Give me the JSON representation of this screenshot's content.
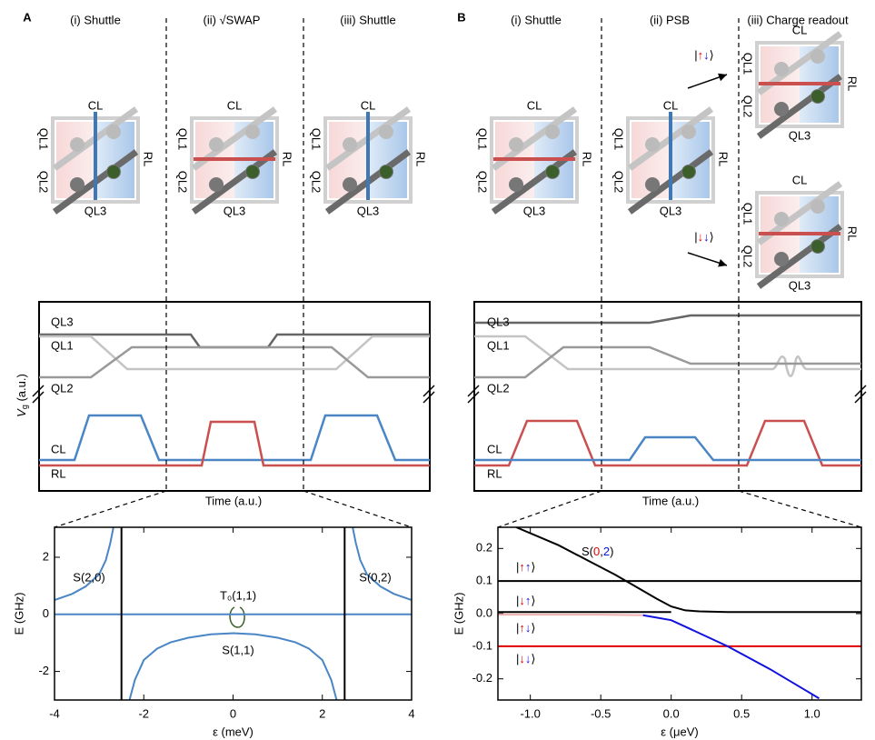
{
  "figure": {
    "panels": [
      "A",
      "B"
    ],
    "columns_a": [
      "(i) Shuttle",
      "(ii) √SWAP",
      "(iii) Shuttle"
    ],
    "columns_b": [
      "(i) Shuttle",
      "(ii) PSB",
      "(iii) Charge readout"
    ],
    "gates": {
      "cl": "CL",
      "rl": "RL",
      "ql1": "QL1",
      "ql2": "QL2",
      "ql3": "QL3"
    },
    "readout_kets": [
      [
        "|",
        "↑",
        "↓",
        "⟩"
      ],
      [
        "|",
        "↓",
        "↓",
        "⟩"
      ]
    ],
    "pulse_ylabel": [
      "V",
      "g",
      " (a.u.)"
    ],
    "pulse_xlabel": "Time (a.u.)"
  },
  "chart_data": [
    {
      "type": "line",
      "xlabel": "ε (meV)",
      "ylabel": "E (GHz)",
      "xlim": [
        -4,
        4
      ],
      "ylim": [
        -3,
        3.05
      ],
      "xticks": [
        -4,
        -2,
        0,
        2,
        4
      ],
      "yticks": [
        -2,
        0,
        2
      ],
      "series": [
        {
          "color": "#4a86c5",
          "x": [
            -4,
            -3.6,
            -3.3,
            -3.0,
            -2.85,
            -2.75,
            -2.68
          ],
          "values": [
            0.5,
            0.72,
            0.98,
            1.4,
            1.9,
            2.5,
            3.05
          ]
        },
        {
          "color": "#4a86c5",
          "x": [
            2.68,
            2.75,
            2.85,
            3.0,
            3.3,
            3.6,
            4
          ],
          "values": [
            3.05,
            2.5,
            1.9,
            1.4,
            0.98,
            0.72,
            0.5
          ]
        },
        {
          "color": "#4a86c5",
          "x": [
            -2.32,
            -2.2,
            -2.0,
            -1.7,
            -1.4,
            -1,
            -0.5,
            0,
            0.5,
            1,
            1.4,
            1.7,
            2.0,
            2.2,
            2.32
          ],
          "values": [
            -3,
            -2.3,
            -1.6,
            -1.2,
            -0.98,
            -0.82,
            -0.7,
            -0.66,
            -0.7,
            -0.82,
            -0.98,
            -1.2,
            -1.6,
            -2.3,
            -3
          ]
        },
        {
          "color": "#4a86c5",
          "x": [
            -4,
            4
          ],
          "values": [
            0,
            0
          ]
        },
        {
          "color": "#000000",
          "x": [
            -2.5,
            -2.5
          ],
          "values": [
            -3,
            3.05
          ]
        },
        {
          "color": "#000000",
          "x": [
            2.5,
            2.5
          ],
          "values": [
            -3,
            3.05
          ]
        }
      ],
      "annotations": [
        "S(2,0)",
        "S(0,2)",
        "T₀(1,1)",
        "S(1,1)"
      ]
    },
    {
      "type": "line",
      "xlabel": "ε (μeV)",
      "ylabel": "E (GHz)",
      "xlim": [
        -1.23,
        1.35
      ],
      "ylim": [
        -0.265,
        0.265
      ],
      "xticks": [
        {
          "value": -1,
          "label": "-1.0"
        },
        -0.5,
        {
          "value": 0,
          "label": "0.0"
        },
        0.5,
        {
          "value": 1,
          "label": "1.0"
        }
      ],
      "yticks": [
        -0.2,
        -0.1,
        {
          "value": 0,
          "label": "0.0"
        },
        0.1,
        0.2
      ],
      "series": [
        {
          "color": "#000000",
          "x": [
            -1.1,
            -0.8,
            -0.6,
            -0.4,
            -0.2,
            -0.1,
            0,
            0.1,
            0.2,
            0.4,
            0.8,
            1.35
          ],
          "values": [
            0.265,
            0.21,
            0.165,
            0.12,
            0.07,
            0.045,
            0.022,
            0.01,
            0.007,
            0.005,
            0.005,
            0.005
          ]
        },
        {
          "color": "#000000",
          "x": [
            -1.23,
            1.35
          ],
          "values": [
            0.1,
            0.1
          ]
        },
        {
          "color": "#e00000",
          "x": [
            -1.23,
            1.35
          ],
          "values": [
            -0.1,
            -0.1
          ]
        },
        {
          "color": "#f0b0b0",
          "x": [
            -1.23,
            -0.5,
            -0.2
          ],
          "values": [
            -0.003,
            -0.003,
            -0.005
          ]
        },
        {
          "color": "#1010e0",
          "x": [
            -0.2,
            0,
            0.2,
            0.4,
            0.7,
            1.05
          ],
          "values": [
            -0.005,
            -0.02,
            -0.06,
            -0.1,
            -0.17,
            -0.26
          ]
        },
        {
          "color": "#000000",
          "x": [
            -1.23,
            0
          ],
          "values": [
            0.005,
            0.005
          ]
        }
      ],
      "annotations": [
        [
          "S(",
          "0",
          ",",
          "2",
          ")"
        ]
      ],
      "kets": [
        [
          "|",
          "↑",
          "↑",
          "⟩"
        ],
        [
          "|",
          "↓",
          "↑",
          "⟩"
        ],
        [
          "|",
          "↑",
          "↓",
          "⟩"
        ],
        [
          "|",
          "↓",
          "↓",
          "⟩"
        ]
      ]
    }
  ]
}
